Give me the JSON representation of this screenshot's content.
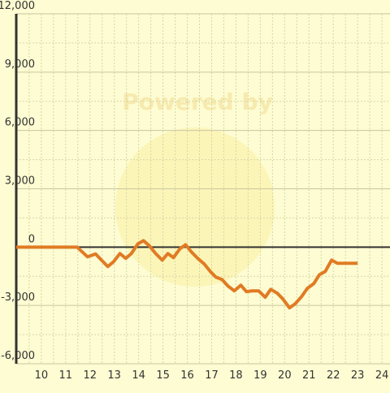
{
  "chart_data": {
    "type": "line",
    "watermark": "Powered by",
    "x": [
      8.97,
      11.47,
      11.9,
      12.23,
      12.73,
      12.97,
      13.23,
      13.47,
      13.7,
      13.97,
      14.2,
      14.43,
      14.7,
      14.97,
      15.2,
      15.43,
      15.7,
      15.93,
      16.17,
      16.43,
      16.7,
      16.97,
      17.17,
      17.43,
      17.67,
      17.93,
      18.2,
      18.43,
      18.67,
      18.93,
      19.2,
      19.43,
      19.7,
      19.93,
      20.2,
      20.43,
      20.7,
      20.93,
      21.2,
      21.43,
      21.67,
      21.93,
      22.17,
      22.43,
      23.0
    ],
    "series": [
      {
        "color": "#e07b24",
        "values": [
          0,
          0,
          -500,
          -350,
          -1000,
          -750,
          -330,
          -580,
          -330,
          170,
          330,
          80,
          -330,
          -670,
          -330,
          -540,
          -80,
          125,
          -250,
          -580,
          -875,
          -1290,
          -1540,
          -1670,
          -2000,
          -2250,
          -1960,
          -2290,
          -2250,
          -2250,
          -2580,
          -2170,
          -2375,
          -2670,
          -3125,
          -2920,
          -2540,
          -2125,
          -1875,
          -1420,
          -1250,
          -670,
          -830,
          -830,
          -830
        ]
      }
    ],
    "xlim": [
      8.97,
      24.33
    ],
    "ylim": [
      -6000,
      12000
    ],
    "xticks": [
      10,
      11,
      12,
      13,
      14,
      15,
      16,
      17,
      18,
      19,
      20,
      21,
      22,
      23,
      24
    ],
    "yticks": [
      {
        "value": -6000,
        "label": "-6,000"
      },
      {
        "value": -3000,
        "label": "-3,000"
      },
      0,
      {
        "value": 3000,
        "label": "3,000"
      },
      {
        "value": 6000,
        "label": "6,000"
      },
      {
        "value": 9000,
        "label": "9,000"
      },
      {
        "value": 12000,
        "label": "12,000"
      }
    ],
    "minor_xticks": [
      9.5,
      10.5,
      11.5,
      12.5,
      13.5,
      14.5,
      15.5,
      16.5,
      17.5,
      18.5,
      19.5,
      20.5,
      21.5,
      22.5,
      23.5
    ],
    "minor_yticks": [
      -4500,
      -1500,
      1500,
      4500,
      7500,
      10500
    ],
    "grid": true
  }
}
